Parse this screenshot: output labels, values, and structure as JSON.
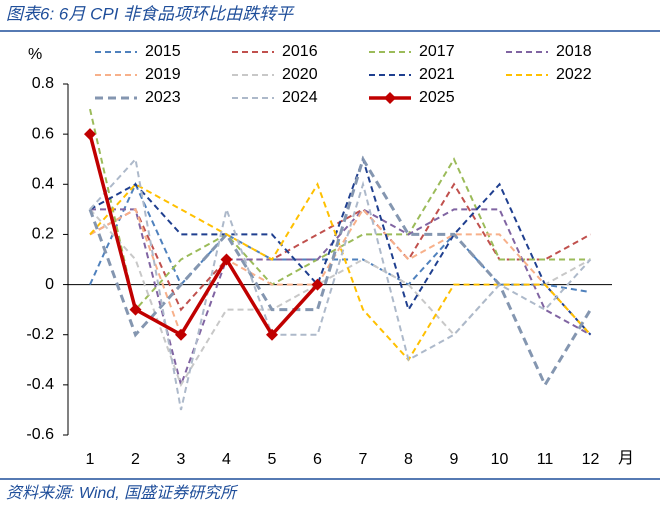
{
  "chart_data": {
    "type": "line",
    "title": "图表6:  6月 CPI 非食品项环比由跌转平",
    "y_label": "%",
    "x_label": "月",
    "source": "资料来源: Wind, 国盛证券研究所",
    "categories": [
      "1",
      "2",
      "3",
      "4",
      "5",
      "6",
      "7",
      "8",
      "9",
      "10",
      "11",
      "12"
    ],
    "ylim": [
      -0.6,
      0.8
    ],
    "yticks": [
      0.8,
      0.6,
      0.4,
      0.2,
      0,
      -0.2,
      -0.4,
      -0.6
    ],
    "series": [
      {
        "name": "2015",
        "color": "#4f81bd",
        "style": "dashed",
        "values": [
          0.0,
          0.4,
          0.0,
          0.2,
          0.1,
          0.1,
          0.1,
          0.0,
          0.2,
          0.0,
          0.0,
          -0.03
        ]
      },
      {
        "name": "2016",
        "color": "#c0504d",
        "style": "dashed",
        "values": [
          0.2,
          0.3,
          -0.1,
          0.1,
          0.1,
          0.2,
          0.3,
          0.1,
          0.4,
          0.1,
          0.1,
          0.2
        ]
      },
      {
        "name": "2017",
        "color": "#9bbb59",
        "style": "dashed",
        "values": [
          0.7,
          -0.1,
          0.1,
          0.2,
          0.0,
          0.1,
          0.2,
          0.2,
          0.5,
          0.1,
          0.1,
          0.1
        ]
      },
      {
        "name": "2018",
        "color": "#8064a2",
        "style": "dashed",
        "values": [
          0.3,
          0.3,
          -0.4,
          0.1,
          0.1,
          0.1,
          0.3,
          0.2,
          0.3,
          0.3,
          -0.1,
          -0.2
        ]
      },
      {
        "name": "2019",
        "color": "#f7b08a",
        "style": "dashed",
        "values": [
          0.2,
          0.3,
          -0.2,
          0.1,
          0.0,
          0.0,
          0.3,
          0.1,
          0.2,
          0.2,
          0.0,
          -0.2
        ]
      },
      {
        "name": "2020",
        "color": "#c8c8c8",
        "style": "dashed",
        "values": [
          0.3,
          0.1,
          -0.4,
          -0.1,
          -0.1,
          0.0,
          0.1,
          0.0,
          -0.2,
          0.0,
          0.0,
          0.1
        ]
      },
      {
        "name": "2021",
        "color": "#1f3f8f",
        "style": "dashed",
        "values": [
          0.3,
          0.4,
          0.2,
          0.2,
          0.2,
          0.0,
          0.5,
          -0.1,
          0.2,
          0.4,
          0.0,
          -0.2
        ]
      },
      {
        "name": "2022",
        "color": "#ffc000",
        "style": "dashed",
        "values": [
          0.2,
          0.4,
          0.3,
          0.2,
          0.1,
          0.4,
          -0.1,
          -0.3,
          0.0,
          0.0,
          0.0,
          -0.2
        ]
      },
      {
        "name": "2023",
        "color": "#8496b0",
        "style": "thick-dashed",
        "values": [
          0.3,
          -0.2,
          0.0,
          0.2,
          -0.1,
          -0.1,
          0.5,
          0.2,
          0.2,
          0.0,
          -0.4,
          -0.1
        ]
      },
      {
        "name": "2024",
        "color": "#adb9ca",
        "style": "dashed",
        "values": [
          0.3,
          0.5,
          -0.5,
          0.3,
          -0.2,
          -0.2,
          0.4,
          -0.3,
          -0.2,
          0.0,
          -0.1,
          0.1
        ]
      },
      {
        "name": "2025",
        "color": "#c00000",
        "style": "solid-marker",
        "values": [
          0.6,
          -0.1,
          -0.2,
          0.1,
          -0.2,
          0.0,
          null,
          null,
          null,
          null,
          null,
          null
        ]
      }
    ]
  }
}
